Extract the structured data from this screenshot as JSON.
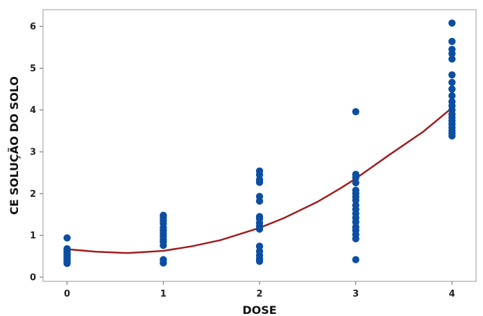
{
  "chart_data": {
    "type": "scatter",
    "title": "",
    "xlabel": "DOSE",
    "ylabel": "CE SOLUÇÃO DO SOLO",
    "xlim": [
      -0.25,
      4.25
    ],
    "ylim": [
      -0.1,
      6.4
    ],
    "x_ticks": [
      "0",
      "1",
      "2",
      "3",
      "4"
    ],
    "y_ticks": [
      "0",
      "1",
      "2",
      "3",
      "4",
      "5",
      "6"
    ],
    "grid": false,
    "colors": {
      "points": "#0b4ea2",
      "curve": "#a01c1c",
      "frame": "#999999"
    },
    "points": [
      {
        "x": 0,
        "y": 0.94
      },
      {
        "x": 0,
        "y": 0.68
      },
      {
        "x": 0,
        "y": 0.64
      },
      {
        "x": 0,
        "y": 0.6
      },
      {
        "x": 0,
        "y": 0.56
      },
      {
        "x": 0,
        "y": 0.52
      },
      {
        "x": 0,
        "y": 0.48
      },
      {
        "x": 0,
        "y": 0.44
      },
      {
        "x": 0,
        "y": 0.41
      },
      {
        "x": 0,
        "y": 0.37
      },
      {
        "x": 0,
        "y": 0.33
      },
      {
        "x": 1,
        "y": 1.48
      },
      {
        "x": 1,
        "y": 1.43
      },
      {
        "x": 1,
        "y": 1.36
      },
      {
        "x": 1,
        "y": 1.28
      },
      {
        "x": 1,
        "y": 1.18
      },
      {
        "x": 1,
        "y": 1.12
      },
      {
        "x": 1,
        "y": 1.05
      },
      {
        "x": 1,
        "y": 0.98
      },
      {
        "x": 1,
        "y": 0.9
      },
      {
        "x": 1,
        "y": 0.84
      },
      {
        "x": 1,
        "y": 0.76
      },
      {
        "x": 1,
        "y": 0.42
      },
      {
        "x": 1,
        "y": 0.34
      },
      {
        "x": 2,
        "y": 2.54
      },
      {
        "x": 2,
        "y": 2.45
      },
      {
        "x": 2,
        "y": 2.33
      },
      {
        "x": 2,
        "y": 2.27
      },
      {
        "x": 2,
        "y": 1.93
      },
      {
        "x": 2,
        "y": 1.82
      },
      {
        "x": 2,
        "y": 1.45
      },
      {
        "x": 2,
        "y": 1.4
      },
      {
        "x": 2,
        "y": 1.3
      },
      {
        "x": 2,
        "y": 1.22
      },
      {
        "x": 2,
        "y": 1.15
      },
      {
        "x": 2,
        "y": 0.74
      },
      {
        "x": 2,
        "y": 0.62
      },
      {
        "x": 2,
        "y": 0.52
      },
      {
        "x": 2,
        "y": 0.44
      },
      {
        "x": 2,
        "y": 0.38
      },
      {
        "x": 3,
        "y": 3.96
      },
      {
        "x": 3,
        "y": 2.46
      },
      {
        "x": 3,
        "y": 2.38
      },
      {
        "x": 3,
        "y": 2.26
      },
      {
        "x": 3,
        "y": 2.08
      },
      {
        "x": 3,
        "y": 2.0
      },
      {
        "x": 3,
        "y": 1.92
      },
      {
        "x": 3,
        "y": 1.84
      },
      {
        "x": 3,
        "y": 1.72
      },
      {
        "x": 3,
        "y": 1.62
      },
      {
        "x": 3,
        "y": 1.52
      },
      {
        "x": 3,
        "y": 1.42
      },
      {
        "x": 3,
        "y": 1.32
      },
      {
        "x": 3,
        "y": 1.2
      },
      {
        "x": 3,
        "y": 1.12
      },
      {
        "x": 3,
        "y": 1.02
      },
      {
        "x": 3,
        "y": 0.92
      },
      {
        "x": 3,
        "y": 0.42
      },
      {
        "x": 4,
        "y": 6.08
      },
      {
        "x": 4,
        "y": 5.64
      },
      {
        "x": 4,
        "y": 5.45
      },
      {
        "x": 4,
        "y": 5.35
      },
      {
        "x": 4,
        "y": 5.22
      },
      {
        "x": 4,
        "y": 4.84
      },
      {
        "x": 4,
        "y": 4.66
      },
      {
        "x": 4,
        "y": 4.5
      },
      {
        "x": 4,
        "y": 4.34
      },
      {
        "x": 4,
        "y": 4.2
      },
      {
        "x": 4,
        "y": 4.1
      },
      {
        "x": 4,
        "y": 4.0
      },
      {
        "x": 4,
        "y": 3.9
      },
      {
        "x": 4,
        "y": 3.82
      },
      {
        "x": 4,
        "y": 3.74
      },
      {
        "x": 4,
        "y": 3.66
      },
      {
        "x": 4,
        "y": 3.58
      },
      {
        "x": 4,
        "y": 3.5
      },
      {
        "x": 4,
        "y": 3.44
      },
      {
        "x": 4,
        "y": 3.38
      }
    ],
    "fit_curve": [
      {
        "x": 0,
        "y": 0.67
      },
      {
        "x": 0.3,
        "y": 0.61
      },
      {
        "x": 0.6,
        "y": 0.58
      },
      {
        "x": 0.65,
        "y": 0.58
      },
      {
        "x": 1,
        "y": 0.63
      },
      {
        "x": 1.3,
        "y": 0.74
      },
      {
        "x": 1.6,
        "y": 0.89
      },
      {
        "x": 2,
        "y": 1.18
      },
      {
        "x": 2.25,
        "y": 1.41
      },
      {
        "x": 2.6,
        "y": 1.8
      },
      {
        "x": 2.85,
        "y": 2.14
      },
      {
        "x": 3,
        "y": 2.36
      },
      {
        "x": 3.35,
        "y": 2.93
      },
      {
        "x": 3.7,
        "y": 3.48
      },
      {
        "x": 4,
        "y": 4.05
      }
    ]
  }
}
